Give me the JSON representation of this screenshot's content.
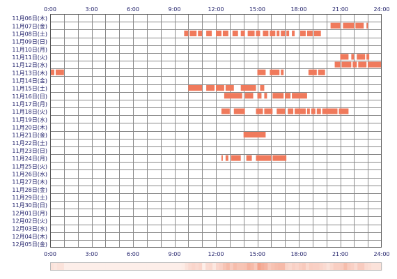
{
  "chart_data": {
    "type": "heatmap",
    "title": "",
    "xlabel": "",
    "ylabel": "",
    "xlim": [
      0,
      24
    ],
    "x_tick_labels": [
      "0:00",
      "3:00",
      "6:00",
      "9:00",
      "12:00",
      "15:00",
      "18:00",
      "21:00",
      "24:00"
    ],
    "grid": true,
    "colors": {
      "activity": "#f07a5c",
      "grid": "#888888",
      "label": "#1a1a66",
      "summary_low": "#fdeee9",
      "summary_high": "#f3a48e"
    },
    "rows": [
      {
        "label": "11月06日(木)",
        "intervals": []
      },
      {
        "label": "11月07日(金)",
        "intervals": [
          [
            20.3,
            21.0
          ],
          [
            21.2,
            22.0
          ],
          [
            22.1,
            22.7
          ],
          [
            22.9,
            23.0
          ]
        ]
      },
      {
        "label": "11月08日(土)",
        "intervals": [
          [
            9.7,
            10.0
          ],
          [
            10.1,
            10.6
          ],
          [
            10.7,
            11.0
          ],
          [
            11.3,
            11.7
          ],
          [
            12.0,
            12.4
          ],
          [
            12.5,
            12.9
          ],
          [
            13.2,
            13.6
          ],
          [
            13.8,
            14.1
          ],
          [
            14.3,
            14.8
          ],
          [
            14.9,
            15.2
          ],
          [
            15.4,
            15.8
          ],
          [
            15.9,
            16.3
          ],
          [
            16.4,
            16.6
          ],
          [
            16.7,
            17.0
          ],
          [
            17.1,
            17.3
          ],
          [
            17.5,
            17.7
          ],
          [
            18.1,
            18.5
          ],
          [
            18.6,
            19.0
          ],
          [
            19.1,
            19.6
          ]
        ]
      },
      {
        "label": "11月09日(日)",
        "intervals": []
      },
      {
        "label": "11月10日(月)",
        "intervals": []
      },
      {
        "label": "11月11日(火)",
        "intervals": [
          [
            21.0,
            21.6
          ],
          [
            21.8,
            22.0
          ],
          [
            22.2,
            22.8
          ],
          [
            22.9,
            23.1
          ]
        ]
      },
      {
        "label": "11月12日(水)",
        "intervals": [
          [
            20.6,
            21.0
          ],
          [
            21.1,
            21.8
          ],
          [
            21.9,
            22.2
          ],
          [
            22.3,
            22.9
          ],
          [
            23.0,
            24.0
          ]
        ]
      },
      {
        "label": "11月13日(木)",
        "intervals": [
          [
            0.0,
            0.3
          ],
          [
            0.4,
            1.0
          ],
          [
            15.0,
            15.6
          ],
          [
            15.9,
            16.6
          ],
          [
            16.7,
            16.9
          ],
          [
            18.7,
            19.3
          ],
          [
            19.4,
            19.9
          ]
        ]
      },
      {
        "label": "11月14日(金)",
        "intervals": []
      },
      {
        "label": "11月15日(土)",
        "intervals": [
          [
            10.0,
            11.0
          ],
          [
            11.3,
            11.9
          ],
          [
            12.0,
            12.6
          ],
          [
            12.7,
            13.3
          ],
          [
            13.8,
            14.9
          ],
          [
            15.2,
            15.5
          ]
        ]
      },
      {
        "label": "11月16日(日)",
        "intervals": [
          [
            12.6,
            13.9
          ],
          [
            14.1,
            14.7
          ],
          [
            15.0,
            15.3
          ],
          [
            15.5,
            15.7
          ],
          [
            16.1,
            16.9
          ],
          [
            17.0,
            17.4
          ],
          [
            17.5,
            18.6
          ]
        ]
      },
      {
        "label": "11月17日(月)",
        "intervals": []
      },
      {
        "label": "11月18日(火)",
        "intervals": [
          [
            12.4,
            13.0
          ],
          [
            13.3,
            14.1
          ],
          [
            14.9,
            15.4
          ],
          [
            15.5,
            16.1
          ],
          [
            16.4,
            17.0
          ],
          [
            17.2,
            17.6
          ],
          [
            17.7,
            18.5
          ],
          [
            18.6,
            18.8
          ],
          [
            18.9,
            19.2
          ],
          [
            19.3,
            19.6
          ],
          [
            19.7,
            20.8
          ],
          [
            20.9,
            21.6
          ]
        ]
      },
      {
        "label": "11月19日(水)",
        "intervals": []
      },
      {
        "label": "11月20日(木)",
        "intervals": []
      },
      {
        "label": "11月21日(金)",
        "intervals": [
          [
            14.0,
            15.6
          ]
        ]
      },
      {
        "label": "11月22日(土)",
        "intervals": []
      },
      {
        "label": "11月23日(日)",
        "intervals": []
      },
      {
        "label": "11月24日(月)",
        "intervals": [
          [
            12.4,
            12.5
          ],
          [
            12.7,
            12.9
          ],
          [
            13.1,
            13.8
          ],
          [
            14.2,
            14.6
          ],
          [
            14.9,
            16.0
          ],
          [
            16.1,
            17.1
          ]
        ]
      },
      {
        "label": "11月25日(火)",
        "intervals": []
      },
      {
        "label": "11月26日(水)",
        "intervals": []
      },
      {
        "label": "11月27日(木)",
        "intervals": []
      },
      {
        "label": "11月28日(金)",
        "intervals": []
      },
      {
        "label": "11月29日(土)",
        "intervals": []
      },
      {
        "label": "11月30日(日)",
        "intervals": []
      },
      {
        "label": "12月01日(月)",
        "intervals": []
      },
      {
        "label": "12月02日(火)",
        "intervals": []
      },
      {
        "label": "12月03日(水)",
        "intervals": []
      },
      {
        "label": "12月04日(木)",
        "intervals": []
      },
      {
        "label": "12月05日(金)",
        "intervals": []
      }
    ]
  }
}
